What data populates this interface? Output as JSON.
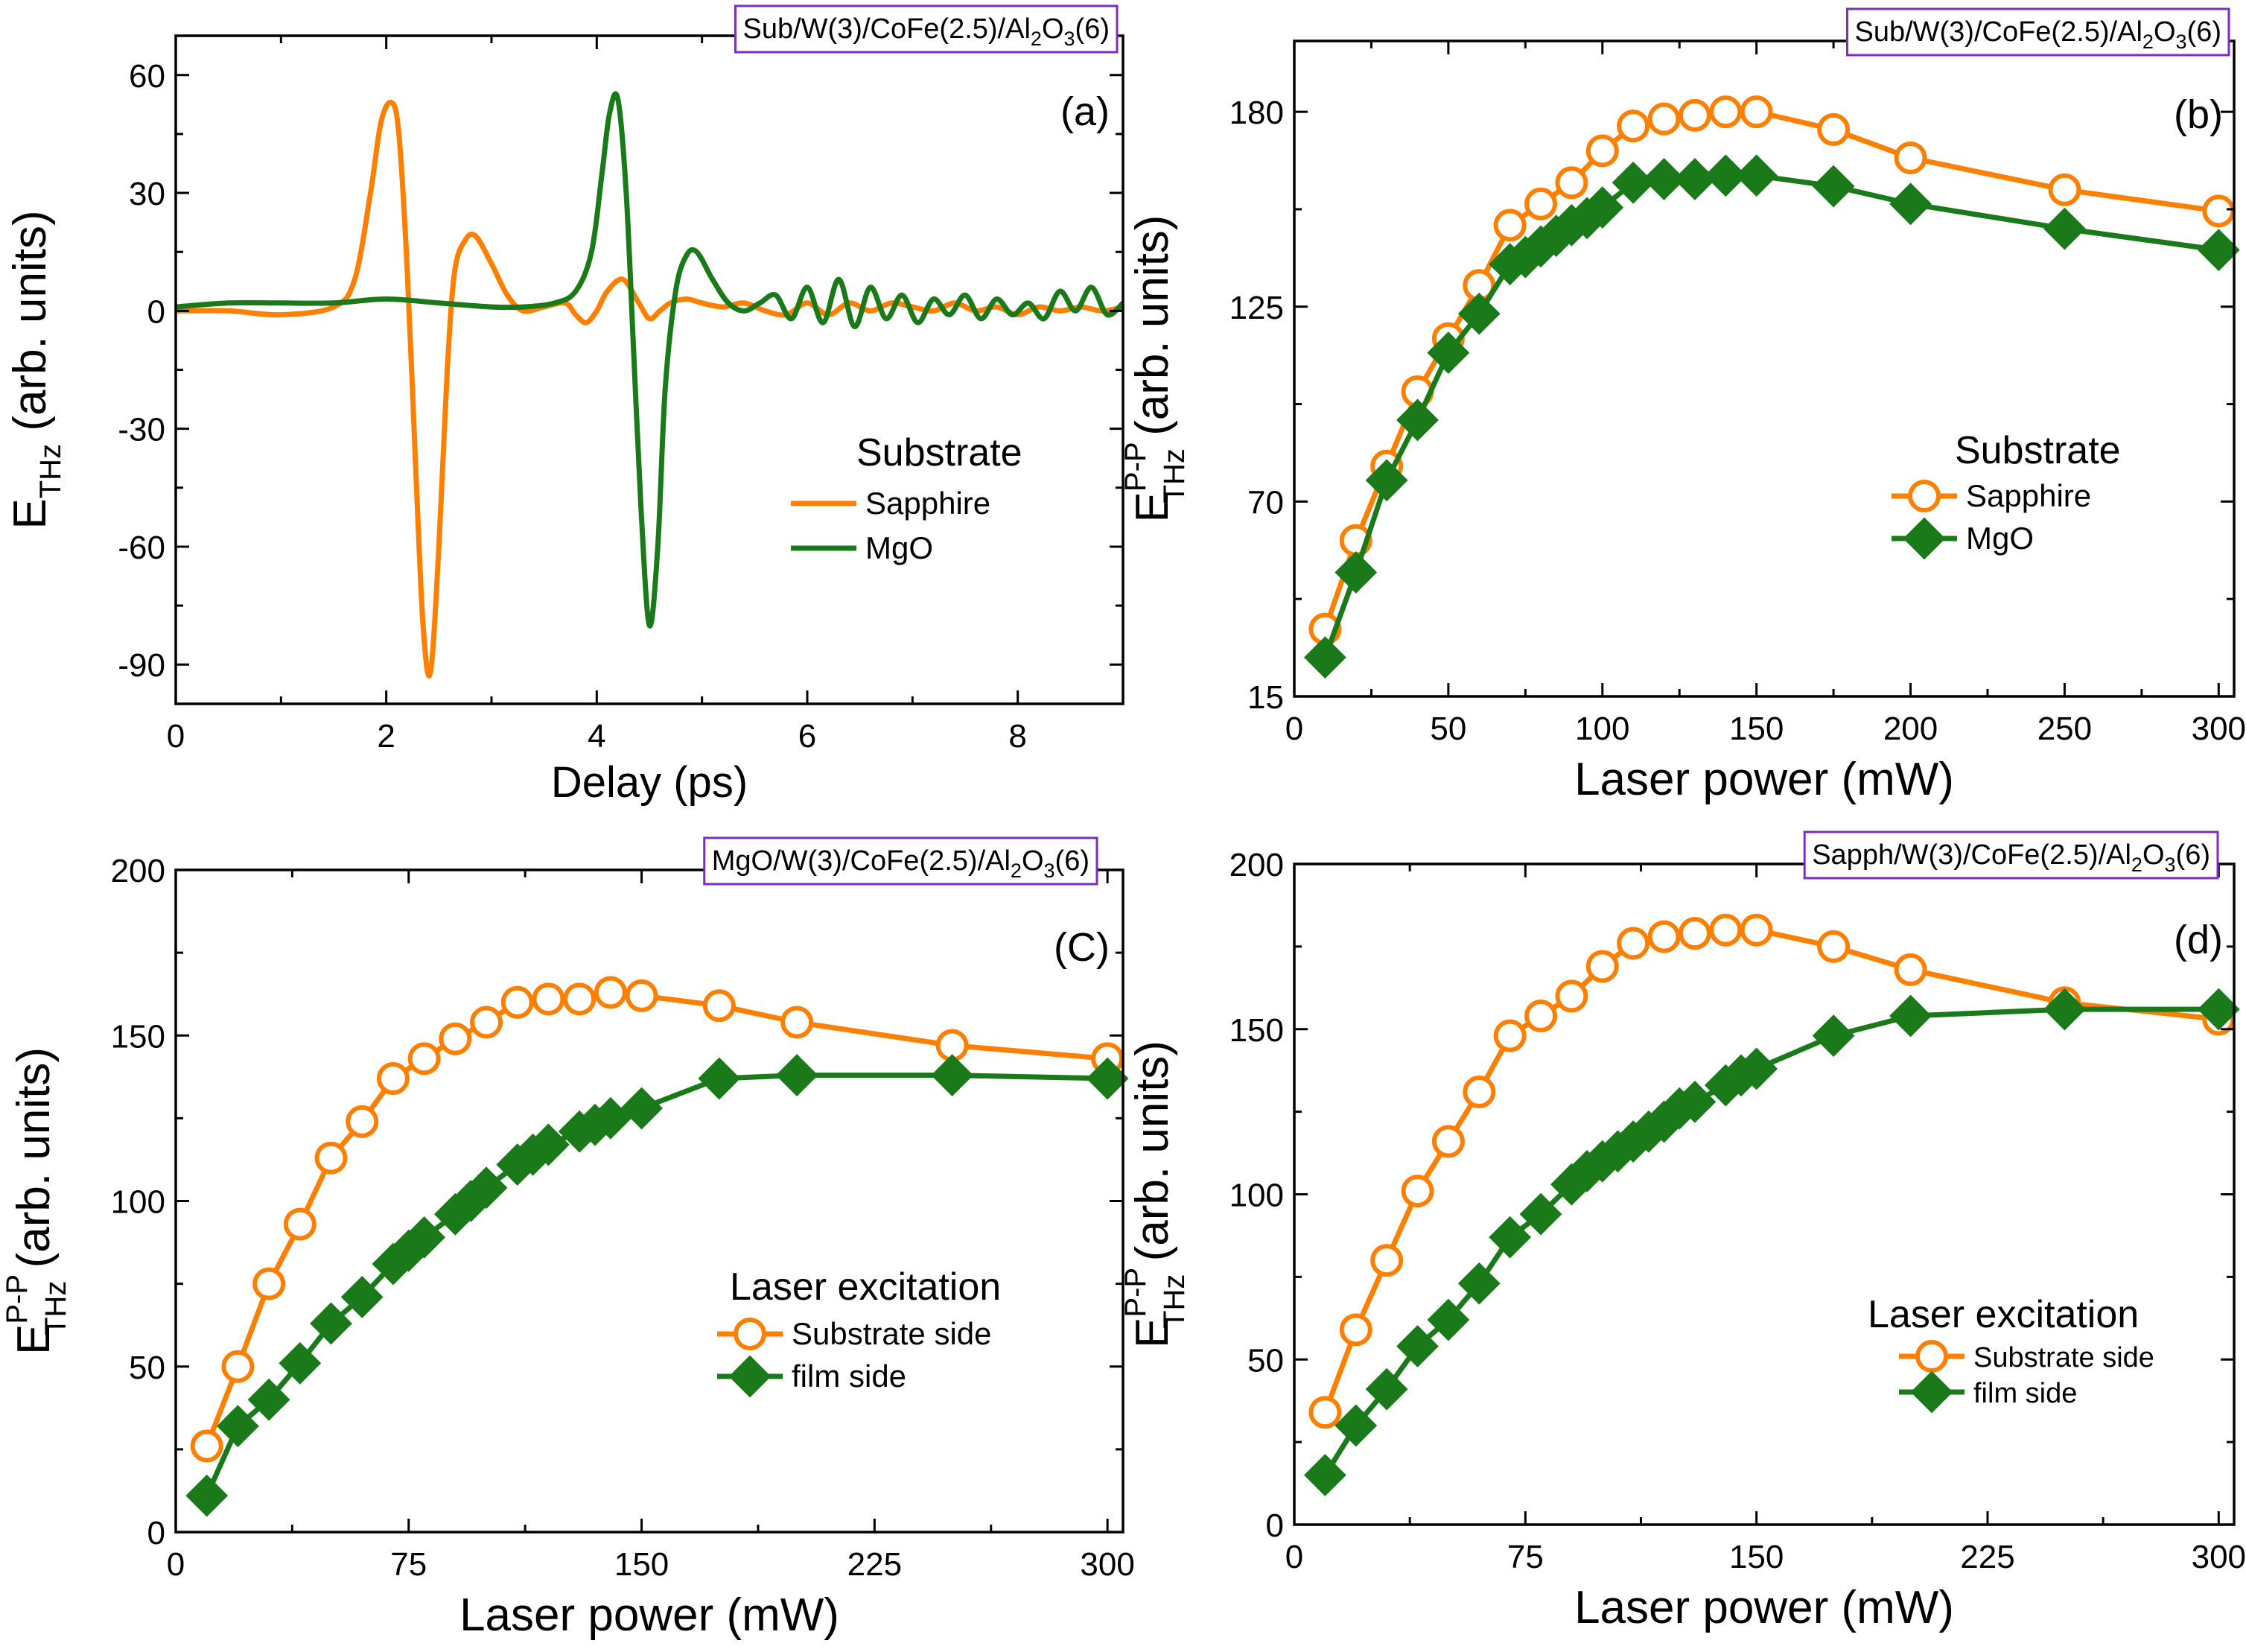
{
  "colors": {
    "orange": "#ff8000",
    "green": "#1a7a1a",
    "frame": "#000000",
    "sample_box_border": "#7b2fbe"
  },
  "chart_data": [
    {
      "id": "a",
      "type": "line",
      "panel_letter": "(a)",
      "sample": {
        "prefix": "Sub/W(3)/CoFe(2.5)/Al",
        "sub1": "2",
        "mid": "O",
        "sub2": "3",
        "suffix": "(6)"
      },
      "xlabel": "Delay (ps)",
      "ylabel": {
        "main": "E",
        "sub": "THz",
        "sup": "",
        "units": " (arb. units)"
      },
      "xlim": [
        0,
        9
      ],
      "ylim": [
        -100,
        70
      ],
      "xticks": [
        0,
        2,
        4,
        6,
        8
      ],
      "yticks": [
        -90,
        -60,
        -30,
        0,
        30,
        60
      ],
      "legend": {
        "title": "Substrate",
        "entries": [
          "Sapphire",
          "MgO"
        ]
      },
      "series": [
        {
          "name": "Sapphire",
          "color": "#ff8000",
          "marker": "none",
          "x": [
            0,
            0.5,
            1.0,
            1.5,
            1.7,
            1.85,
            1.95,
            2.05,
            2.12,
            2.2,
            2.28,
            2.35,
            2.42,
            2.5,
            2.58,
            2.65,
            2.75,
            2.85,
            3.0,
            3.15,
            3.3,
            3.5,
            3.7,
            3.8,
            3.9,
            4.0,
            4.1,
            4.25,
            4.4,
            4.5,
            4.6,
            4.7,
            4.85,
            5.0,
            5.2,
            5.4,
            5.6,
            5.8,
            6.0,
            6.2,
            6.4,
            6.6,
            6.8,
            7.0,
            7.2,
            7.4,
            7.6,
            7.8,
            8.0,
            8.2,
            8.4,
            8.6,
            8.8,
            9.0
          ],
          "y": [
            0,
            0,
            -1,
            1,
            8,
            30,
            48,
            53,
            45,
            10,
            -40,
            -80,
            -92,
            -60,
            -15,
            10,
            18,
            19,
            12,
            4,
            0,
            1,
            2,
            -1,
            -3,
            0,
            5,
            8,
            2,
            -2,
            0,
            2,
            3,
            2,
            1,
            2,
            0,
            -1,
            2,
            -1,
            2,
            0,
            2,
            1,
            0,
            2,
            0,
            1,
            -1,
            1,
            0,
            1,
            0,
            1
          ]
        },
        {
          "name": "MgO",
          "color": "#1a7a1a",
          "marker": "none",
          "x": [
            0,
            0.5,
            1.0,
            1.5,
            2.0,
            2.5,
            3.0,
            3.3,
            3.6,
            3.8,
            3.95,
            4.05,
            4.12,
            4.2,
            4.28,
            4.35,
            4.42,
            4.5,
            4.58,
            4.65,
            4.75,
            4.85,
            4.95,
            5.1,
            5.25,
            5.4,
            5.55,
            5.7,
            5.85,
            6.0,
            6.15,
            6.3,
            6.45,
            6.6,
            6.75,
            6.9,
            7.05,
            7.2,
            7.35,
            7.5,
            7.65,
            7.8,
            7.95,
            8.1,
            8.25,
            8.4,
            8.55,
            8.7,
            8.85,
            9.0
          ],
          "y": [
            1,
            2,
            2,
            2,
            3,
            2,
            1,
            1,
            2,
            5,
            15,
            35,
            50,
            54,
            30,
            -10,
            -50,
            -80,
            -60,
            -20,
            5,
            14,
            15,
            8,
            2,
            0,
            2,
            4,
            -2,
            6,
            -3,
            8,
            -4,
            6,
            -2,
            4,
            -3,
            3,
            -1,
            4,
            -2,
            3,
            -1,
            2,
            -2,
            5,
            0,
            6,
            -1,
            2
          ]
        }
      ]
    },
    {
      "id": "b",
      "type": "line",
      "panel_letter": "(b)",
      "sample": {
        "prefix": "Sub/W(3)/CoFe(2.5)/Al",
        "sub1": "2",
        "mid": "O",
        "sub2": "3",
        "suffix": "(6)"
      },
      "xlabel": "Laser power (mW)",
      "ylabel": {
        "main": "E",
        "sub": "THz",
        "sup": "P-P",
        "units": " (arb. units)"
      },
      "xlim": [
        0,
        305
      ],
      "ylim": [
        15,
        200
      ],
      "xticks": [
        0,
        50,
        100,
        150,
        200,
        250,
        300
      ],
      "yticks": [
        15,
        70,
        125,
        180
      ],
      "legend": {
        "title": "Substrate",
        "entries": [
          "Sapphire",
          "MgO"
        ]
      },
      "series": [
        {
          "name": "Sapphire",
          "color": "#ff8000",
          "marker": "open-circle",
          "x": [
            10,
            20,
            30,
            40,
            50,
            60,
            70,
            80,
            90,
            100,
            110,
            120,
            130,
            140,
            150,
            175,
            200,
            250,
            300
          ],
          "y": [
            34,
            59,
            80,
            101,
            116,
            131,
            148,
            154,
            160,
            169,
            176,
            178,
            179,
            180,
            180,
            175,
            167,
            158,
            152
          ]
        },
        {
          "name": "MgO",
          "color": "#1a7a1a",
          "marker": "filled-diamond",
          "x": [
            10,
            20,
            30,
            40,
            50,
            60,
            70,
            75,
            80,
            85,
            90,
            95,
            100,
            110,
            120,
            130,
            140,
            150,
            175,
            200,
            250,
            300
          ],
          "y": [
            26,
            50,
            76,
            93,
            112,
            123,
            137,
            139,
            142,
            145,
            148,
            150,
            153,
            160,
            161,
            161,
            162,
            162,
            159,
            154,
            147,
            141
          ]
        }
      ]
    },
    {
      "id": "c",
      "type": "line",
      "panel_letter": "(C)",
      "sample": {
        "prefix": "MgO/W(3)/CoFe(2.5)/Al",
        "sub1": "2",
        "mid": "O",
        "sub2": "3",
        "suffix": "(6)"
      },
      "xlabel": "Laser power (mW)",
      "ylabel": {
        "main": "E",
        "sub": "THz",
        "sup": "P-P",
        "units": " (arb. units)"
      },
      "xlim": [
        0,
        305
      ],
      "ylim": [
        0,
        200
      ],
      "xticks": [
        0,
        75,
        150,
        225,
        300
      ],
      "yticks": [
        0,
        50,
        100,
        150,
        200
      ],
      "legend": {
        "title": "Laser excitation",
        "entries": [
          "Substrate side",
          "film side"
        ]
      },
      "series": [
        {
          "name": "Substrate side",
          "color": "#ff8000",
          "marker": "open-circle",
          "x": [
            10,
            20,
            30,
            40,
            50,
            60,
            70,
            80,
            90,
            100,
            110,
            120,
            130,
            140,
            150,
            175,
            200,
            250,
            300
          ],
          "y": [
            26,
            50,
            75,
            93,
            113,
            124,
            137,
            143,
            149,
            154,
            160,
            161,
            161,
            163,
            162,
            159,
            154,
            147,
            143
          ]
        },
        {
          "name": "film side",
          "color": "#1a7a1a",
          "marker": "filled-diamond",
          "x": [
            10,
            20,
            30,
            40,
            50,
            60,
            70,
            75,
            80,
            90,
            95,
            100,
            110,
            115,
            120,
            130,
            135,
            140,
            150,
            175,
            200,
            250,
            300
          ],
          "y": [
            11,
            32,
            40,
            51,
            63,
            71,
            81,
            85,
            89,
            96,
            100,
            104,
            111,
            114,
            117,
            121,
            123,
            125,
            128,
            137,
            138,
            138,
            137
          ]
        }
      ]
    },
    {
      "id": "d",
      "type": "line",
      "panel_letter": "(d)",
      "sample": {
        "prefix": "Sapph/W(3)/CoFe(2.5)/Al",
        "sub1": "2",
        "mid": "O",
        "sub2": "3",
        "suffix": "(6)"
      },
      "xlabel": "Laser power (mW)",
      "ylabel": {
        "main": "E",
        "sub": "THz",
        "sup": "P-P",
        "units": " (arb. units)"
      },
      "xlim": [
        0,
        305
      ],
      "ylim": [
        0,
        200
      ],
      "xticks": [
        0,
        75,
        150,
        225,
        300
      ],
      "yticks": [
        0,
        50,
        100,
        150,
        200
      ],
      "legend": {
        "title": "Laser excitation",
        "entries": [
          "Substrate side",
          "film side"
        ]
      },
      "series": [
        {
          "name": "Substrate side",
          "color": "#ff8000",
          "marker": "open-circle",
          "x": [
            10,
            20,
            30,
            40,
            50,
            60,
            70,
            80,
            90,
            100,
            110,
            120,
            130,
            140,
            150,
            175,
            200,
            250,
            300
          ],
          "y": [
            34,
            59,
            80,
            101,
            116,
            131,
            148,
            154,
            160,
            169,
            176,
            178,
            179,
            180,
            180,
            175,
            168,
            158,
            153
          ]
        },
        {
          "name": "film side",
          "color": "#1a7a1a",
          "marker": "filled-diamond",
          "x": [
            10,
            20,
            30,
            40,
            50,
            60,
            70,
            80,
            90,
            95,
            100,
            105,
            110,
            115,
            120,
            125,
            130,
            140,
            145,
            150,
            175,
            200,
            250,
            300
          ],
          "y": [
            15,
            30,
            41,
            54,
            62,
            73,
            87,
            94,
            103,
            107,
            110,
            113,
            116,
            119,
            122,
            126,
            128,
            133,
            136,
            138,
            148,
            154,
            156,
            156
          ]
        }
      ]
    }
  ]
}
